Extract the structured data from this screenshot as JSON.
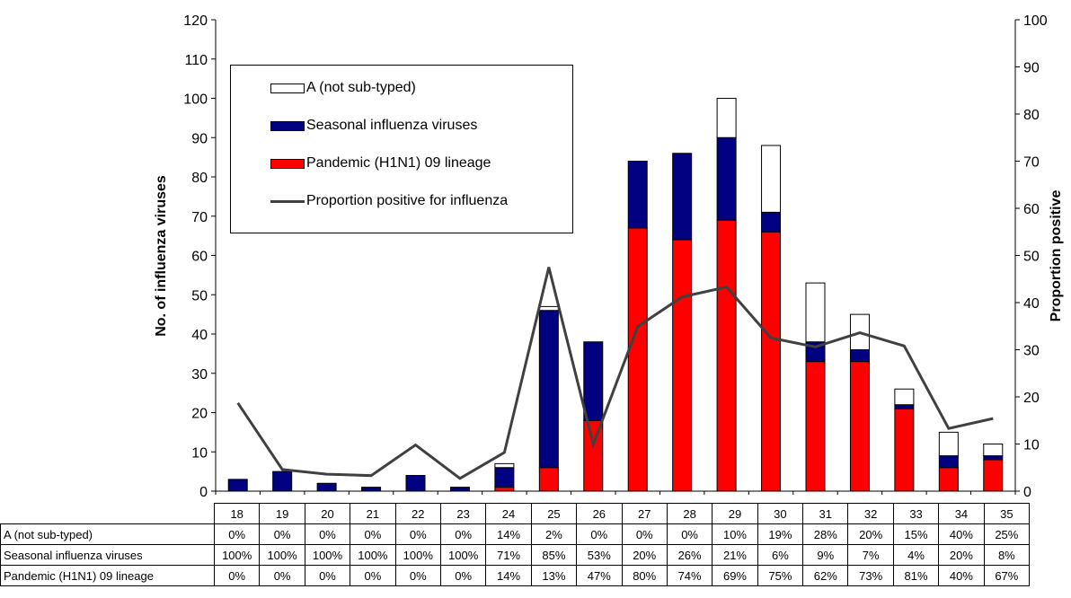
{
  "chart_data": {
    "type": "bar",
    "stacked": true,
    "categories": [
      "18",
      "19",
      "20",
      "21",
      "22",
      "23",
      "24",
      "25",
      "26",
      "27",
      "28",
      "29",
      "30",
      "31",
      "32",
      "33",
      "34",
      "35"
    ],
    "series": [
      {
        "name": "Pandemic (H1N1) 09 lineage",
        "color": "#ff0000",
        "values": [
          0,
          0,
          0,
          0,
          0,
          0,
          1,
          6,
          18,
          67,
          64,
          69,
          66,
          33,
          33,
          21,
          6,
          8
        ]
      },
      {
        "name": "Seasonal influenza viruses",
        "color": "#000080",
        "values": [
          3,
          5,
          2,
          1,
          4,
          1,
          5,
          40,
          20,
          17,
          22,
          21,
          5,
          5,
          3,
          1,
          3,
          1
        ]
      },
      {
        "name": "A (not sub-typed)",
        "color": "#ffffff",
        "values": [
          0,
          0,
          0,
          0,
          0,
          0,
          1,
          1,
          0,
          0,
          0,
          10,
          17,
          15,
          9,
          4,
          6,
          3
        ]
      }
    ],
    "line_series": {
      "name": "Proportion positive for influenza",
      "color": "#404040",
      "axis": "right",
      "values": [
        18.7,
        4.6,
        3.6,
        3.3,
        9.8,
        2.7,
        8.2,
        47.5,
        9.9,
        34.9,
        41.2,
        43.3,
        32.5,
        30.6,
        33.6,
        30.8,
        13.3,
        15.4
      ]
    },
    "ylabel": "No. of influenza viruses",
    "y2label": "Proportion positive",
    "ylim": [
      0,
      120
    ],
    "yticks": [
      "0",
      "10",
      "20",
      "30",
      "40",
      "50",
      "60",
      "70",
      "80",
      "90",
      "100",
      "110",
      "120"
    ],
    "y2lim": [
      0,
      100
    ],
    "y2ticks": [
      "0",
      "10",
      "20",
      "30",
      "40",
      "50",
      "60",
      "70",
      "80",
      "90",
      "100"
    ],
    "legend": {
      "placement": "top-left",
      "items": [
        "A (not sub-typed)",
        "Seasonal influenza viruses",
        "Pandemic (H1N1) 09 lineage",
        "Proportion positive for influenza"
      ]
    },
    "table": {
      "rows": [
        {
          "label": "A (not sub-typed)",
          "values": [
            "0%",
            "0%",
            "0%",
            "0%",
            "0%",
            "0%",
            "14%",
            "2%",
            "0%",
            "0%",
            "0%",
            "10%",
            "19%",
            "28%",
            "20%",
            "15%",
            "40%",
            "25%"
          ]
        },
        {
          "label": "Seasonal influenza viruses",
          "values": [
            "100%",
            "100%",
            "100%",
            "100%",
            "100%",
            "100%",
            "71%",
            "85%",
            "53%",
            "20%",
            "26%",
            "21%",
            "6%",
            "9%",
            "7%",
            "4%",
            "20%",
            "8%"
          ]
        },
        {
          "label": "Pandemic (H1N1) 09 lineage",
          "values": [
            "0%",
            "0%",
            "0%",
            "0%",
            "0%",
            "0%",
            "14%",
            "13%",
            "47%",
            "80%",
            "74%",
            "69%",
            "75%",
            "62%",
            "73%",
            "81%",
            "40%",
            "67%"
          ]
        }
      ]
    }
  }
}
